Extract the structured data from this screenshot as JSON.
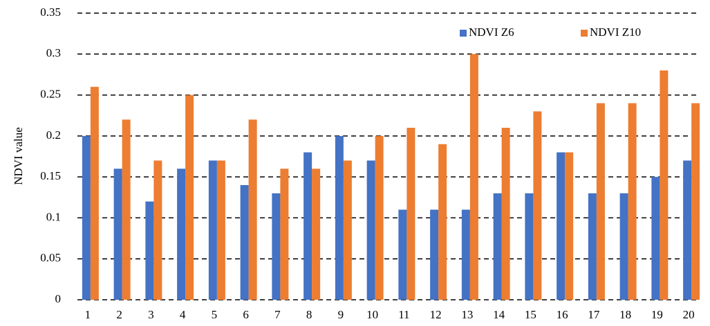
{
  "chart_data": {
    "type": "bar",
    "y_label": "NDVI value",
    "categories": [
      "1",
      "2",
      "3",
      "4",
      "5",
      "6",
      "7",
      "8",
      "9",
      "10",
      "11",
      "12",
      "13",
      "14",
      "15",
      "16",
      "17",
      "18",
      "19",
      "20"
    ],
    "series": [
      {
        "name": "NDVI Z6",
        "color": "#4472c4",
        "values": [
          0.2,
          0.16,
          0.12,
          0.16,
          0.17,
          0.14,
          0.13,
          0.18,
          0.2,
          0.17,
          0.11,
          0.11,
          0.11,
          0.13,
          0.13,
          0.18,
          0.13,
          0.13,
          0.15,
          0.17
        ]
      },
      {
        "name": "NDVI Z10",
        "color": "#ed7d31",
        "values": [
          0.26,
          0.22,
          0.17,
          0.25,
          0.17,
          0.22,
          0.16,
          0.16,
          0.17,
          0.2,
          0.21,
          0.19,
          0.3,
          0.21,
          0.23,
          0.18,
          0.24,
          0.24,
          0.28,
          0.24
        ]
      }
    ],
    "ylim": [
      0,
      0.35
    ],
    "yticks": [
      0,
      0.05,
      0.1,
      0.15,
      0.2,
      0.25,
      0.3,
      0.35
    ],
    "grid": true,
    "legend": "top-right"
  }
}
